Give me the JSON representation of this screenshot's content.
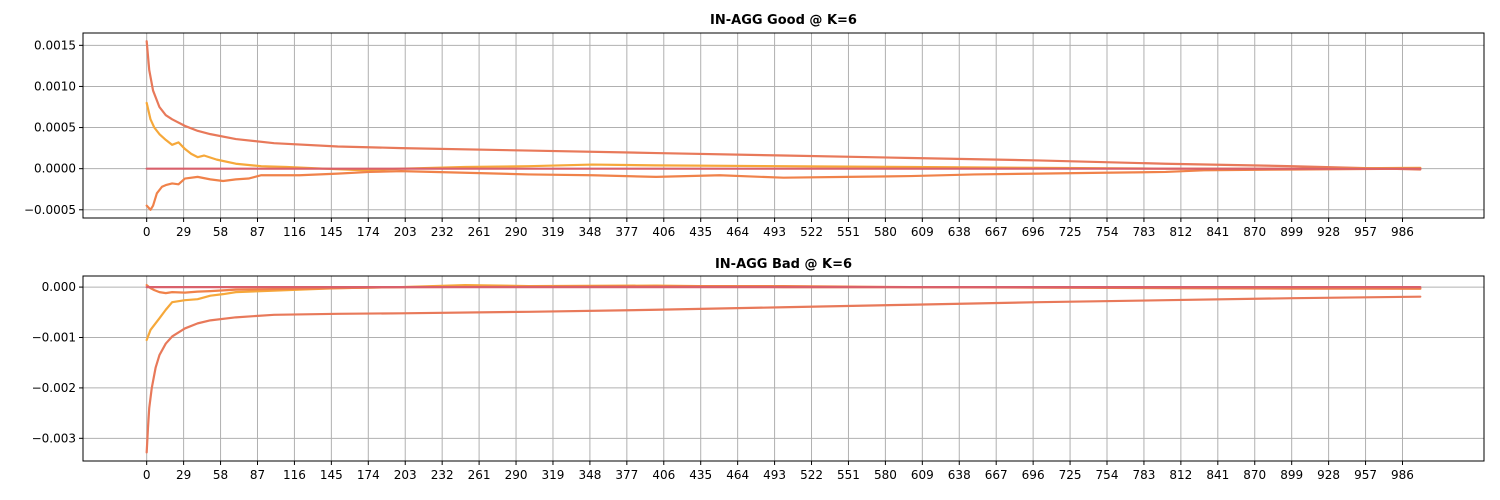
{
  "colors": {
    "series_a": "#e8795a",
    "series_b": "#f6a83a",
    "series_c": "#d9606b",
    "grid": "#b0b0b0"
  },
  "chart_data": [
    {
      "type": "line",
      "title": "IN-AGG Good @ K=6",
      "xlabel": "",
      "ylabel": "",
      "xlim": [
        -50,
        1050
      ],
      "ylim": [
        -0.0006,
        0.00165
      ],
      "grid": true,
      "xticks": [
        0,
        29,
        58,
        87,
        116,
        145,
        174,
        203,
        232,
        261,
        290,
        319,
        348,
        377,
        406,
        435,
        464,
        493,
        522,
        551,
        580,
        609,
        638,
        667,
        696,
        725,
        754,
        783,
        812,
        841,
        870,
        899,
        928,
        957,
        986
      ],
      "yticks": [
        -0.0005,
        0.0,
        0.0005,
        0.001,
        0.0015
      ],
      "ytick_labels": [
        "−0.0005",
        "0.0000",
        "0.0005",
        "0.0010",
        "0.0015"
      ],
      "series": [
        {
          "color": "#e8795a",
          "x": [
            0,
            2,
            5,
            10,
            15,
            20,
            30,
            40,
            50,
            70,
            100,
            150,
            200,
            300,
            400,
            500,
            600,
            700,
            800,
            900,
            1000
          ],
          "y": [
            0.00155,
            0.0012,
            0.00095,
            0.00075,
            0.00065,
            0.0006,
            0.00052,
            0.00046,
            0.00042,
            0.00036,
            0.00031,
            0.00027,
            0.00025,
            0.00022,
            0.00019,
            0.00016,
            0.00013,
            0.0001,
            6e-05,
            3e-05,
            -1e-05
          ]
        },
        {
          "color": "#f6a83a",
          "x": [
            0,
            3,
            6,
            10,
            15,
            20,
            25,
            30,
            35,
            40,
            45,
            55,
            70,
            90,
            110,
            140,
            170,
            200,
            250,
            300,
            350,
            400,
            500,
            600,
            700,
            800,
            900,
            1000
          ],
          "y": [
            0.0008,
            0.0006,
            0.0005,
            0.00042,
            0.00035,
            0.00029,
            0.00032,
            0.00024,
            0.00018,
            0.00014,
            0.00016,
            0.00011,
            6e-05,
            3e-05,
            2e-05,
            0.0,
            -2e-05,
            0.0,
            2e-05,
            3e-05,
            5e-05,
            4e-05,
            3e-05,
            2e-05,
            1e-05,
            0.0,
            0.0,
            1e-05
          ]
        },
        {
          "color": "#f0824a",
          "x": [
            0,
            3,
            5,
            8,
            12,
            15,
            20,
            25,
            30,
            40,
            50,
            60,
            70,
            80,
            90,
            120,
            150,
            175,
            200,
            250,
            300,
            350,
            400,
            450,
            500,
            550,
            600,
            650,
            700,
            750,
            800,
            830,
            900,
            1000
          ],
          "y": [
            -0.00045,
            -0.0005,
            -0.00045,
            -0.0003,
            -0.00022,
            -0.0002,
            -0.00018,
            -0.00019,
            -0.00012,
            -0.0001,
            -0.00013,
            -0.00015,
            -0.00013,
            -0.00012,
            -8e-05,
            -8e-05,
            -6e-05,
            -4e-05,
            -3e-05,
            -5e-05,
            -7e-05,
            -8e-05,
            -0.0001,
            -8e-05,
            -0.00011,
            -0.0001,
            -9e-05,
            -7e-05,
            -6e-05,
            -5e-05,
            -4e-05,
            -2e-05,
            -1e-05,
            0.0
          ]
        },
        {
          "color": "#d9606b",
          "x": [
            0,
            1000
          ],
          "y": [
            0.0,
            0.0
          ]
        }
      ]
    },
    {
      "type": "line",
      "title": "IN-AGG Bad @ K=6",
      "xlabel": "",
      "ylabel": "",
      "xlim": [
        -50,
        1050
      ],
      "ylim": [
        -0.00345,
        0.00022
      ],
      "grid": true,
      "xticks": [
        0,
        29,
        58,
        87,
        116,
        145,
        174,
        203,
        232,
        261,
        290,
        319,
        348,
        377,
        406,
        435,
        464,
        493,
        522,
        551,
        580,
        609,
        638,
        667,
        696,
        725,
        754,
        783,
        812,
        841,
        870,
        899,
        928,
        957,
        986
      ],
      "yticks": [
        -0.003,
        -0.002,
        -0.001,
        0.0
      ],
      "ytick_labels": [
        "−0.003",
        "−0.002",
        "−0.001",
        "0.000"
      ],
      "series": [
        {
          "color": "#e8795a",
          "x": [
            0,
            1,
            2,
            4,
            7,
            10,
            15,
            20,
            30,
            40,
            50,
            70,
            100,
            150,
            200,
            300,
            400,
            500,
            600,
            700,
            800,
            900,
            1000
          ],
          "y": [
            -0.00328,
            -0.0028,
            -0.0024,
            -0.002,
            -0.0016,
            -0.00135,
            -0.00112,
            -0.00098,
            -0.00082,
            -0.00072,
            -0.00066,
            -0.0006,
            -0.00055,
            -0.00053,
            -0.00052,
            -0.00049,
            -0.00045,
            -0.0004,
            -0.00035,
            -0.0003,
            -0.00026,
            -0.00022,
            -0.00019
          ]
        },
        {
          "color": "#f6a83a",
          "x": [
            0,
            3,
            6,
            10,
            15,
            20,
            25,
            30,
            40,
            50,
            60,
            70,
            90,
            110,
            150,
            200,
            250,
            300,
            400,
            500,
            600,
            700,
            800,
            900,
            1000
          ],
          "y": [
            -0.00105,
            -0.00085,
            -0.00075,
            -0.00062,
            -0.00045,
            -0.0003,
            -0.00028,
            -0.00026,
            -0.00024,
            -0.00017,
            -0.00014,
            -0.0001,
            -8e-05,
            -6e-05,
            -2e-05,
            0.0,
            4e-05,
            2e-05,
            3e-05,
            0.0,
            0.0,
            0.0,
            -1e-05,
            -2e-05,
            -3e-05
          ]
        },
        {
          "color": "#f0824a",
          "x": [
            0,
            3,
            6,
            10,
            15,
            20,
            30,
            40,
            50,
            70,
            100,
            150,
            200,
            300,
            400,
            500,
            600,
            700,
            800,
            900,
            1000
          ],
          "y": [
            4e-05,
            -2e-05,
            -6e-05,
            -0.0001,
            -0.00012,
            -0.0001,
            -0.00011,
            -9e-05,
            -8e-05,
            -5e-05,
            -4e-05,
            -2e-05,
            0.0,
            1e-05,
            2e-05,
            2e-05,
            0.0,
            -1e-05,
            -2e-05,
            -3e-05,
            -3e-05
          ]
        },
        {
          "color": "#d9606b",
          "x": [
            0,
            1000
          ],
          "y": [
            0.0,
            0.0
          ]
        }
      ]
    }
  ]
}
